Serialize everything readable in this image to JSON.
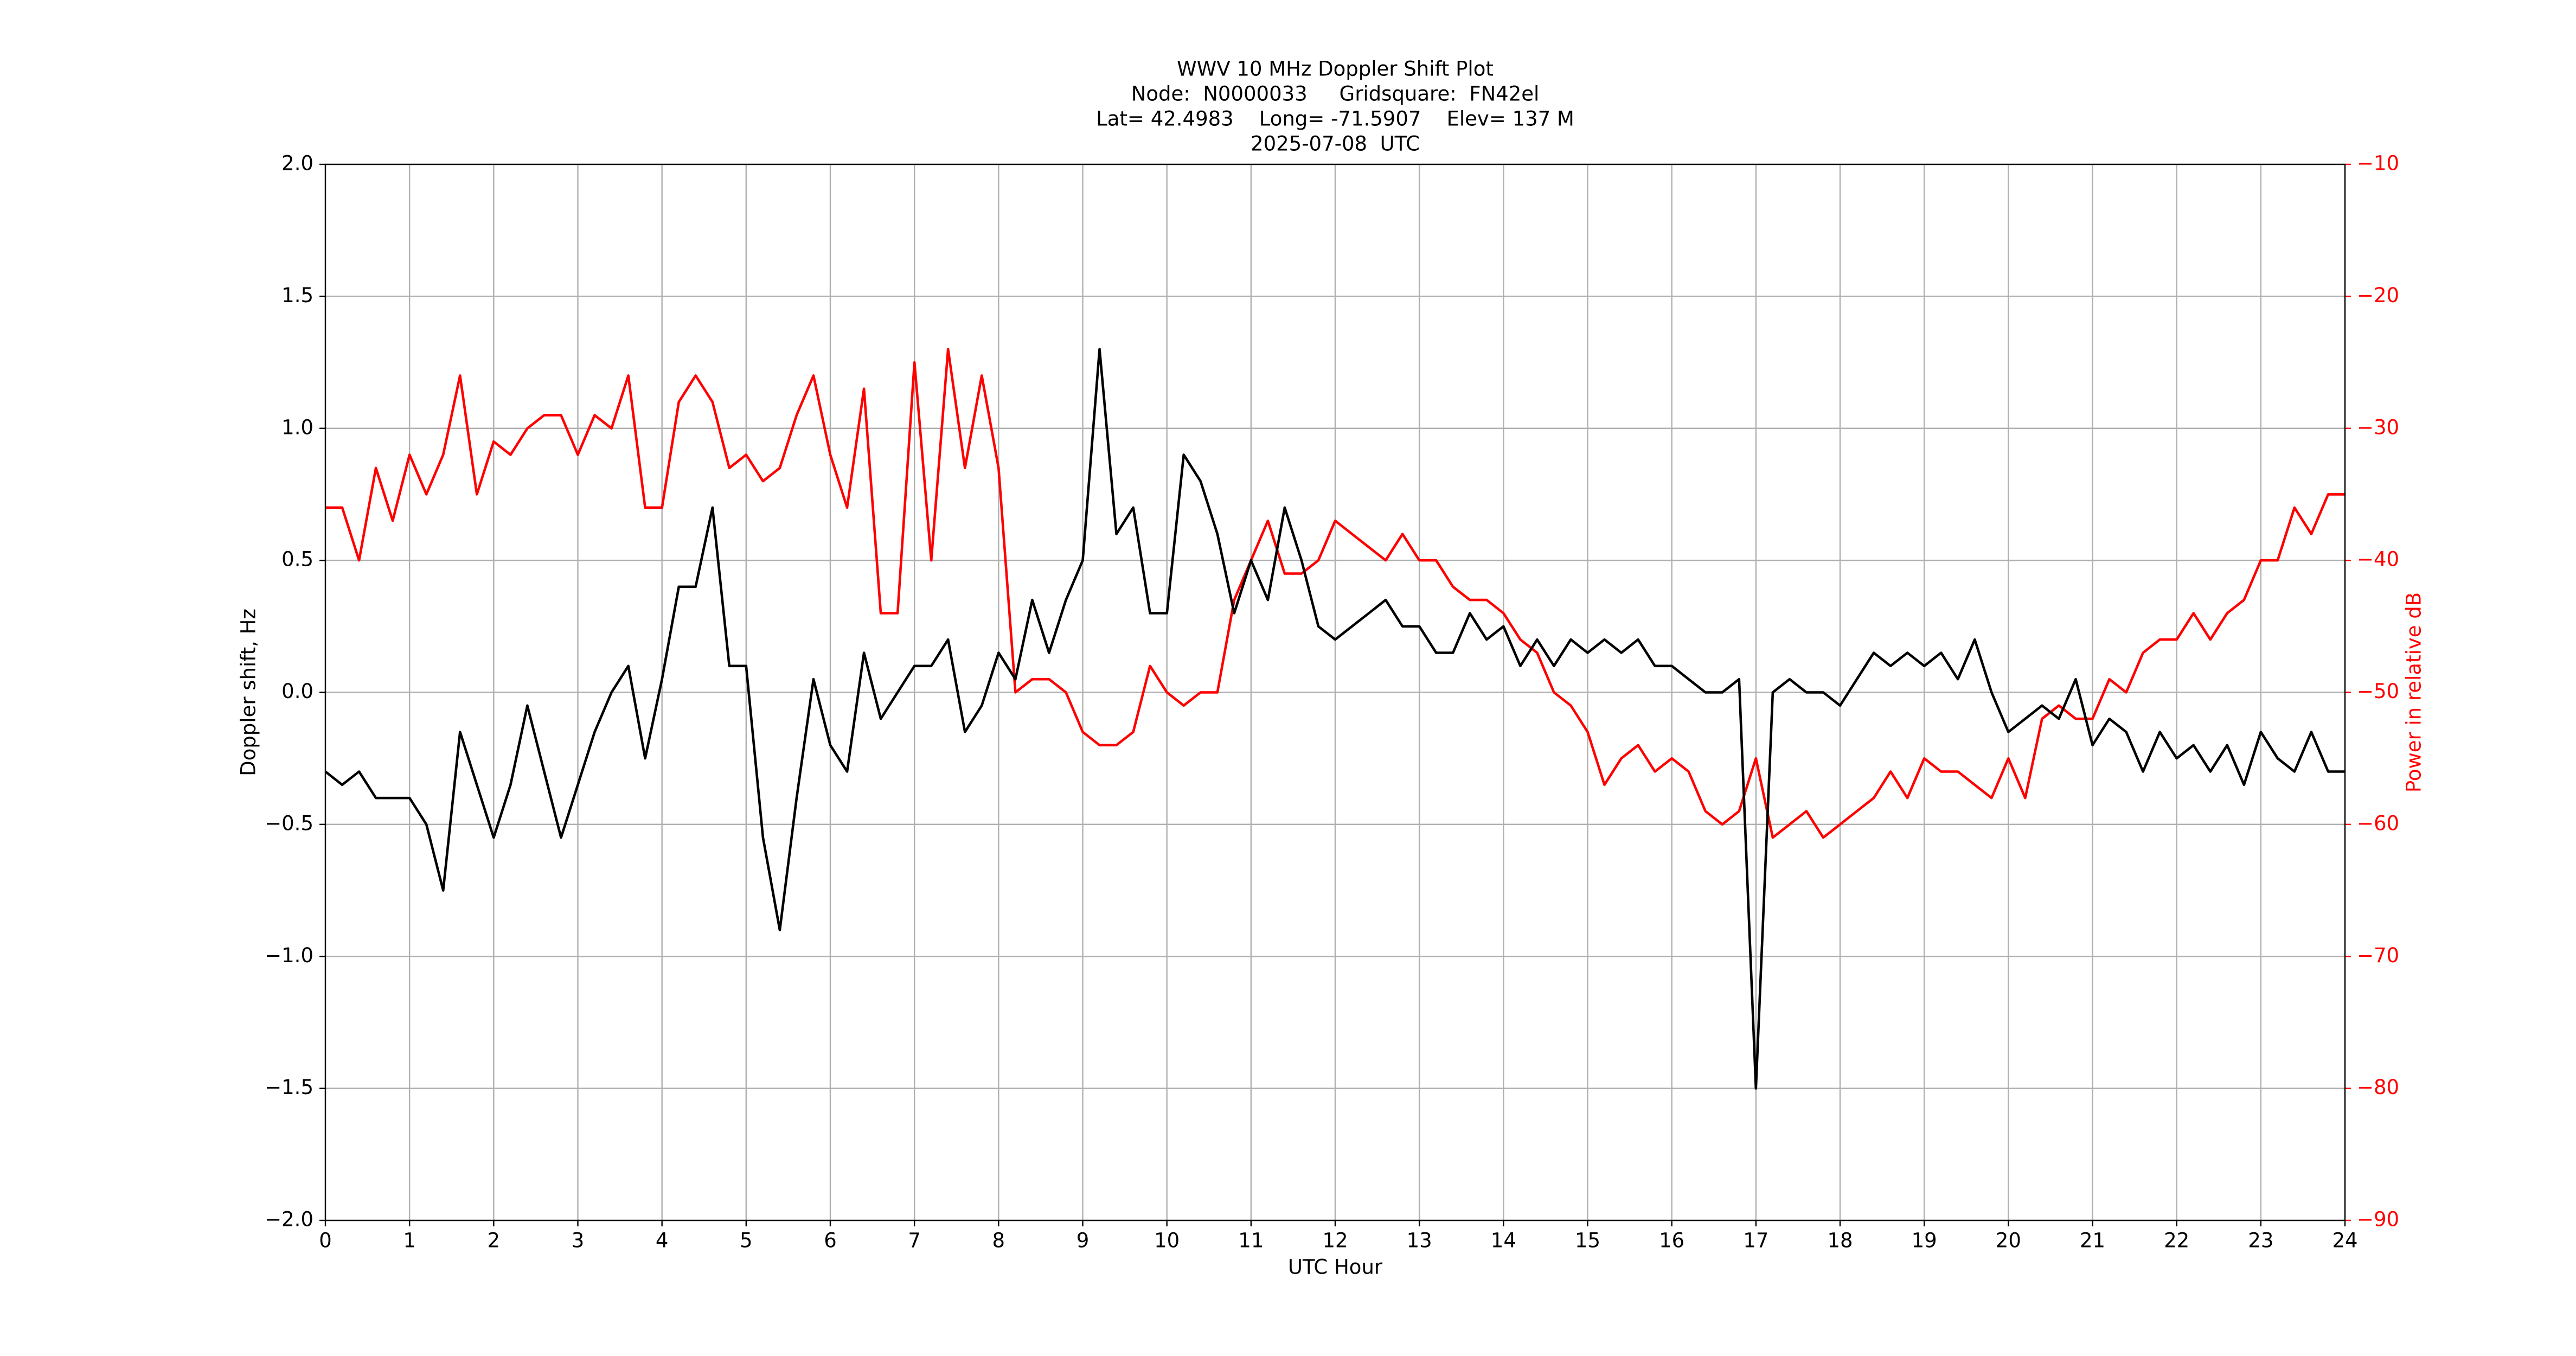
{
  "chart_data": {
    "type": "line",
    "title": [
      "WWV 10 MHz Doppler Shift Plot",
      "Node:  N0000033     Gridsquare:  FN42el",
      "Lat= 42.4983    Long= -71.5907    Elev= 137 M",
      "2025-07-08  UTC"
    ],
    "xlabel": "UTC Hour",
    "ylabel": "Doppler shift, Hz",
    "y2label": "Power in relative dB",
    "grid": true,
    "xlim": [
      0,
      24
    ],
    "xticks": [
      0,
      1,
      2,
      3,
      4,
      5,
      6,
      7,
      8,
      9,
      10,
      11,
      12,
      13,
      14,
      15,
      16,
      17,
      18,
      19,
      20,
      21,
      22,
      23,
      24
    ],
    "ylim": [
      -2.0,
      2.0
    ],
    "yticks": [
      {
        "value": -2.0,
        "label": "−2.0"
      },
      {
        "value": -1.5,
        "label": "−1.5"
      },
      {
        "value": -1.0,
        "label": "−1.0"
      },
      {
        "value": -0.5,
        "label": "−0.5"
      },
      {
        "value": 0.0,
        "label": "0.0"
      },
      {
        "value": 0.5,
        "label": "0.5"
      },
      {
        "value": 1.0,
        "label": "1.0"
      },
      {
        "value": 1.5,
        "label": "1.5"
      },
      {
        "value": 2.0,
        "label": "2.0"
      }
    ],
    "y2lim": [
      -90,
      -10
    ],
    "y2ticks": [
      {
        "value": -90,
        "label": "−90"
      },
      {
        "value": -80,
        "label": "−80"
      },
      {
        "value": -70,
        "label": "−70"
      },
      {
        "value": -60,
        "label": "−60"
      },
      {
        "value": -50,
        "label": "−50"
      },
      {
        "value": -40,
        "label": "−40"
      },
      {
        "value": -30,
        "label": "−30"
      },
      {
        "value": -20,
        "label": "−20"
      },
      {
        "value": -10,
        "label": "−10"
      }
    ],
    "x": [
      0,
      0.2,
      0.4,
      0.6,
      0.8,
      1,
      1.2,
      1.4,
      1.6,
      1.8,
      2,
      2.2,
      2.4,
      2.6,
      2.8,
      3,
      3.2,
      3.4,
      3.6,
      3.8,
      4,
      4.2,
      4.4,
      4.6,
      4.8,
      5,
      5.2,
      5.4,
      5.6,
      5.8,
      6,
      6.2,
      6.4,
      6.6,
      6.8,
      7,
      7.2,
      7.4,
      7.6,
      7.8,
      8,
      8.2,
      8.4,
      8.6,
      8.8,
      9,
      9.2,
      9.4,
      9.6,
      9.8,
      10,
      10.2,
      10.4,
      10.6,
      10.8,
      11,
      11.2,
      11.4,
      11.6,
      11.8,
      12,
      12.2,
      12.4,
      12.6,
      12.8,
      13,
      13.2,
      13.4,
      13.6,
      13.8,
      14,
      14.2,
      14.4,
      14.6,
      14.8,
      15,
      15.2,
      15.4,
      15.6,
      15.8,
      16,
      16.2,
      16.4,
      16.6,
      16.8,
      17,
      17.2,
      17.4,
      17.6,
      17.8,
      18,
      18.2,
      18.4,
      18.6,
      18.8,
      19,
      19.2,
      19.4,
      19.6,
      19.8,
      20,
      20.2,
      20.4,
      20.6,
      20.8,
      21,
      21.2,
      21.4,
      21.6,
      21.8,
      22,
      22.2,
      22.4,
      22.6,
      22.8,
      23,
      23.2,
      23.4,
      23.6,
      23.8,
      24
    ],
    "series": [
      {
        "color": "#000000",
        "axis": "y",
        "values": [
          -0.3,
          -0.35,
          -0.3,
          -0.4,
          -0.4,
          -0.4,
          -0.5,
          -0.75,
          -0.15,
          -0.35,
          -0.55,
          -0.35,
          -0.05,
          -0.3,
          -0.55,
          -0.35,
          -0.15,
          0.0,
          0.1,
          -0.25,
          0.05,
          0.4,
          0.4,
          0.7,
          0.1,
          0.1,
          -0.55,
          -0.9,
          -0.4,
          0.05,
          -0.2,
          -0.3,
          0.15,
          -0.1,
          0.0,
          0.1,
          0.1,
          0.2,
          -0.15,
          -0.05,
          0.15,
          0.05,
          0.35,
          0.15,
          0.35,
          0.5,
          1.3,
          0.6,
          0.7,
          0.3,
          0.3,
          0.9,
          0.8,
          0.6,
          0.3,
          0.5,
          0.35,
          0.7,
          0.5,
          0.25,
          0.2,
          0.25,
          0.3,
          0.35,
          0.25,
          0.25,
          0.15,
          0.15,
          0.3,
          0.2,
          0.25,
          0.1,
          0.2,
          0.1,
          0.2,
          0.15,
          0.2,
          0.15,
          0.2,
          0.1,
          0.1,
          0.05,
          0.0,
          0.0,
          0.05,
          -1.5,
          0.0,
          0.05,
          0.0,
          0.0,
          -0.05,
          0.05,
          0.15,
          0.1,
          0.15,
          0.1,
          0.15,
          0.05,
          0.2,
          0.0,
          -0.15,
          -0.1,
          -0.05,
          -0.1,
          0.05,
          -0.2,
          -0.1,
          -0.15,
          -0.3,
          -0.15,
          -0.25,
          -0.2,
          -0.3,
          -0.2,
          -0.35,
          -0.15,
          -0.25,
          -0.3,
          -0.15,
          -0.3,
          -0.3
        ]
      },
      {
        "color": "#ff0000",
        "axis": "y2",
        "values": [
          -36,
          -36,
          -40,
          -33,
          -37,
          -32,
          -35,
          -32,
          -26,
          -35,
          -31,
          -32,
          -30,
          -29,
          -29,
          -32,
          -29,
          -30,
          -26,
          -36,
          -36,
          -28,
          -26,
          -28,
          -33,
          -32,
          -34,
          -33,
          -29,
          -26,
          -32,
          -36,
          -27,
          -44,
          -44,
          -25,
          -40,
          -24,
          -33,
          -26,
          -33,
          -50,
          -49,
          -49,
          -50,
          -53,
          -54,
          -54,
          -53,
          -48,
          -50,
          -51,
          -50,
          -50,
          -43,
          -40,
          -37,
          -41,
          -41,
          -40,
          -37,
          -38,
          -39,
          -40,
          -38,
          -40,
          -40,
          -42,
          -43,
          -43,
          -44,
          -46,
          -47,
          -50,
          -51,
          -53,
          -57,
          -55,
          -54,
          -56,
          -55,
          -56,
          -59,
          -60,
          -59,
          -55,
          -61,
          -60,
          -59,
          -61,
          -60,
          -59,
          -58,
          -56,
          -58,
          -55,
          -56,
          -56,
          -57,
          -58,
          -55,
          -58,
          -52,
          -51,
          -52,
          -52,
          -49,
          -50,
          -47,
          -46,
          -46,
          -44,
          -46,
          -44,
          -43,
          -40,
          -40,
          -36,
          -38,
          -35,
          -35
        ]
      }
    ]
  }
}
